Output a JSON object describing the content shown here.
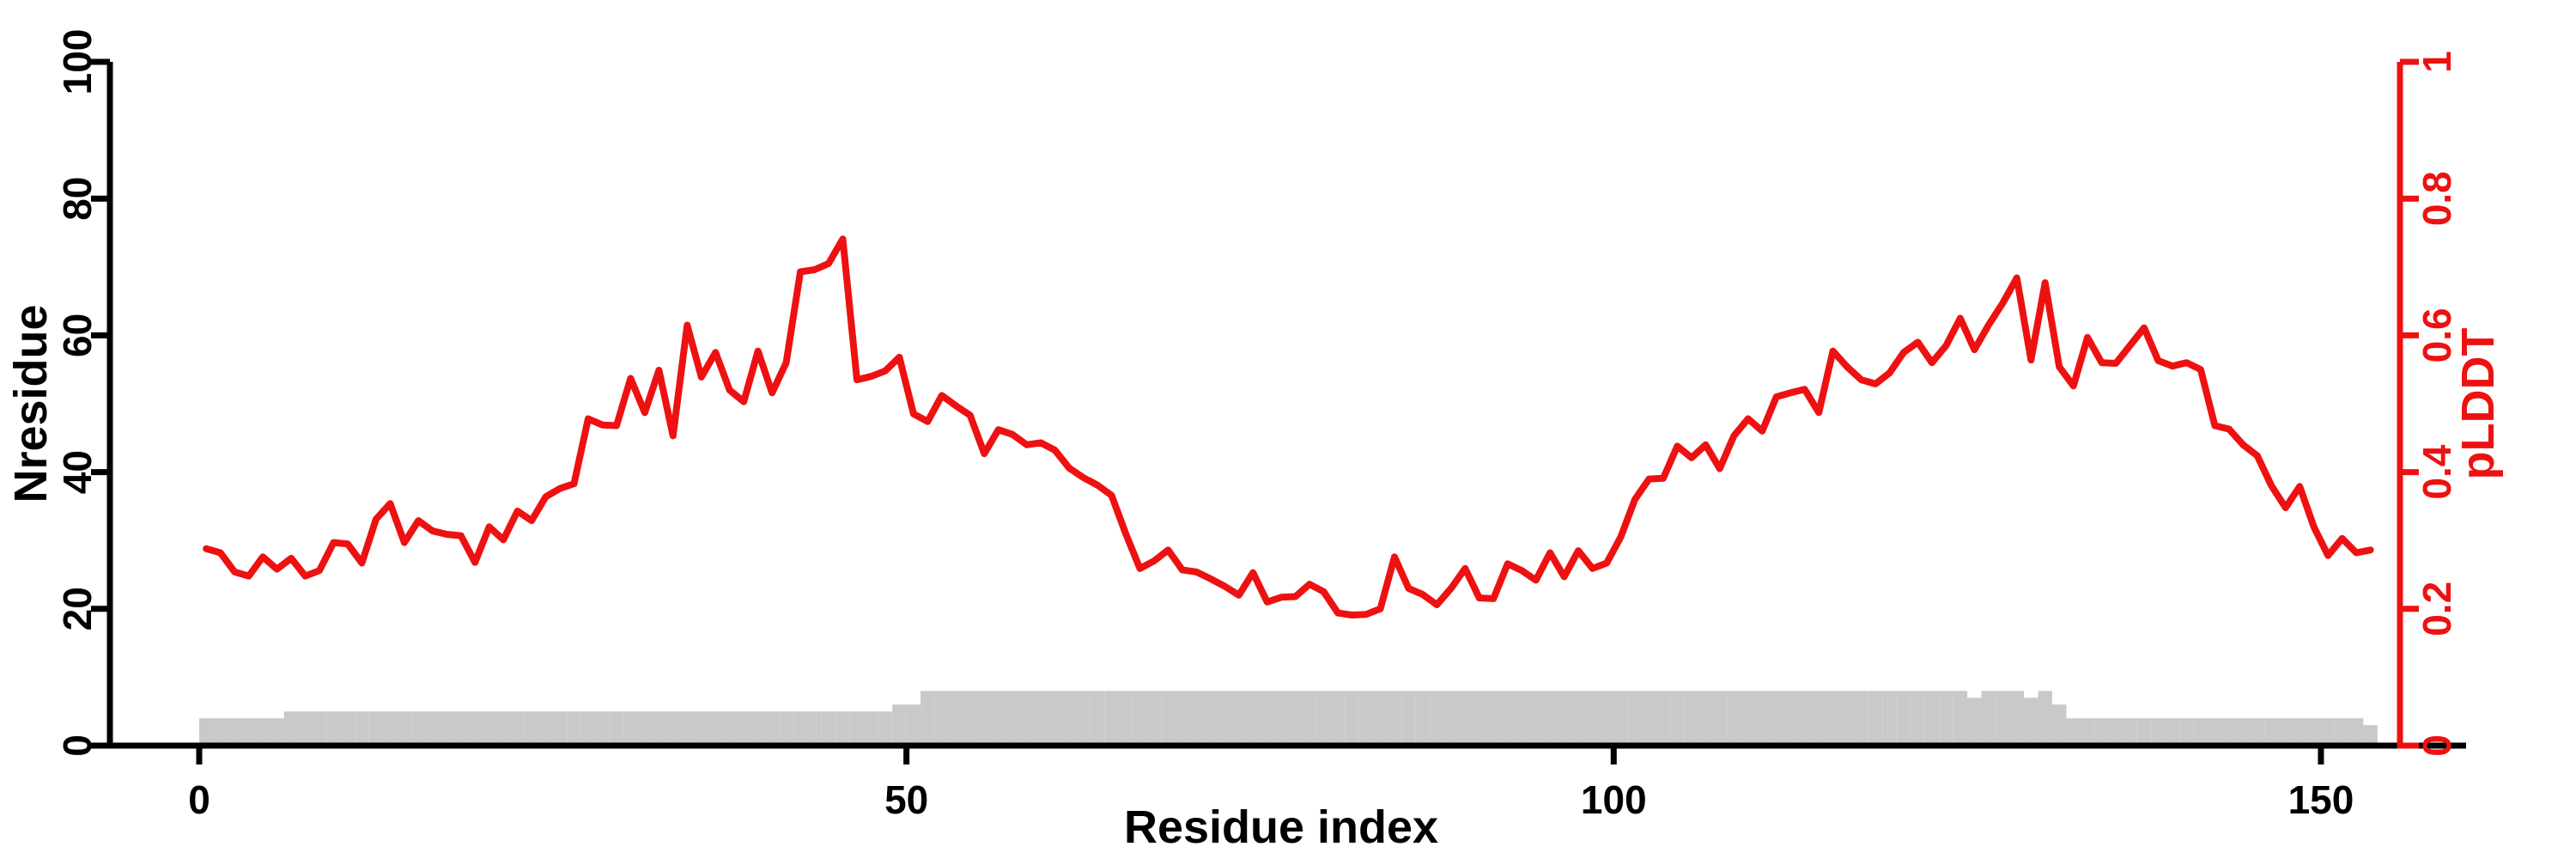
{
  "colors": {
    "line_red": "#ee1111",
    "bar_gray": "#c9c9c9",
    "axis_black": "#000000",
    "background": "#ffffff"
  },
  "chart_data": {
    "type": "line",
    "title": "",
    "xlabel": "Residue index",
    "ylabel_left": "Nresidue",
    "ylabel_right": "pLDDT",
    "x_ticks": [
      0,
      50,
      100,
      150
    ],
    "y_ticks_left": [
      "0",
      "20",
      "40",
      "60",
      "80",
      "100"
    ],
    "y_ticks_right": [
      "0",
      "0.2",
      "0.4",
      "0.6",
      "0.8",
      "1"
    ],
    "xlim": [
      0,
      155.6
    ],
    "ylim_left": [
      0,
      100
    ],
    "ylim_right": [
      0,
      1
    ],
    "grid": false,
    "legend": "none",
    "residue_index_start": 1,
    "series": [
      {
        "name": "pLDDT",
        "type": "line",
        "yaxis": "right",
        "color": "#ee1111",
        "values": [
          0.288,
          0.282,
          0.254,
          0.248,
          0.276,
          0.258,
          0.274,
          0.248,
          0.256,
          0.297,
          0.295,
          0.267,
          0.331,
          0.354,
          0.297,
          0.329,
          0.314,
          0.309,
          0.307,
          0.268,
          0.32,
          0.301,
          0.343,
          0.329,
          0.364,
          0.376,
          0.383,
          0.478,
          0.469,
          0.468,
          0.537,
          0.487,
          0.549,
          0.453,
          0.615,
          0.539,
          0.575,
          0.52,
          0.503,
          0.577,
          0.516,
          0.56,
          0.693,
          0.696,
          0.705,
          0.741,
          0.535,
          0.54,
          0.548,
          0.568,
          0.485,
          0.474,
          0.512,
          0.497,
          0.483,
          0.427,
          0.462,
          0.455,
          0.44,
          0.443,
          0.432,
          0.406,
          0.392,
          0.381,
          0.366,
          0.31,
          0.259,
          0.27,
          0.286,
          0.257,
          0.254,
          0.244,
          0.233,
          0.22,
          0.253,
          0.21,
          0.217,
          0.218,
          0.236,
          0.225,
          0.194,
          0.191,
          0.192,
          0.2,
          0.276,
          0.23,
          0.221,
          0.206,
          0.23,
          0.259,
          0.216,
          0.215,
          0.266,
          0.256,
          0.242,
          0.282,
          0.247,
          0.285,
          0.259,
          0.267,
          0.305,
          0.36,
          0.39,
          0.391,
          0.438,
          0.421,
          0.44,
          0.405,
          0.453,
          0.478,
          0.46,
          0.51,
          0.516,
          0.521,
          0.487,
          0.577,
          0.554,
          0.535,
          0.529,
          0.545,
          0.575,
          0.59,
          0.56,
          0.585,
          0.625,
          0.579,
          0.615,
          0.647,
          0.684,
          0.564,
          0.677,
          0.554,
          0.526,
          0.597,
          0.56,
          0.559,
          0.585,
          0.611,
          0.563,
          0.555,
          0.56,
          0.55,
          0.468,
          0.463,
          0.44,
          0.424,
          0.38,
          0.348,
          0.379,
          0.32,
          0.278,
          0.303,
          0.282,
          0.286
        ]
      },
      {
        "name": "Nresidue",
        "type": "bar",
        "yaxis": "left",
        "color": "#c9c9c9",
        "values": [
          4,
          4,
          4,
          4,
          4,
          4,
          5,
          5,
          5,
          5,
          5,
          5,
          5,
          5,
          5,
          5,
          5,
          5,
          5,
          5,
          5,
          5,
          5,
          5,
          5,
          5,
          5,
          5,
          5,
          5,
          5,
          5,
          5,
          5,
          5,
          5,
          5,
          5,
          5,
          5,
          5,
          5,
          5,
          5,
          5,
          5,
          5,
          5,
          5,
          6,
          6,
          8,
          8,
          8,
          8,
          8,
          8,
          8,
          8,
          8,
          8,
          8,
          8,
          8,
          8,
          8,
          8,
          8,
          8,
          8,
          8,
          8,
          8,
          8,
          8,
          8,
          8,
          8,
          8,
          8,
          8,
          8,
          8,
          8,
          8,
          8,
          8,
          8,
          8,
          8,
          8,
          8,
          8,
          8,
          8,
          8,
          8,
          8,
          8,
          8,
          8,
          8,
          8,
          8,
          8,
          8,
          8,
          8,
          8,
          8,
          8,
          8,
          8,
          8,
          8,
          8,
          8,
          8,
          8,
          8,
          8,
          8,
          8,
          8,
          8,
          7,
          8,
          8,
          8,
          7,
          8,
          6,
          4,
          4,
          4,
          4,
          4,
          4,
          4,
          4,
          4,
          4,
          4,
          4,
          4,
          4,
          4,
          4,
          4,
          4,
          4,
          4,
          4,
          3
        ]
      }
    ]
  }
}
